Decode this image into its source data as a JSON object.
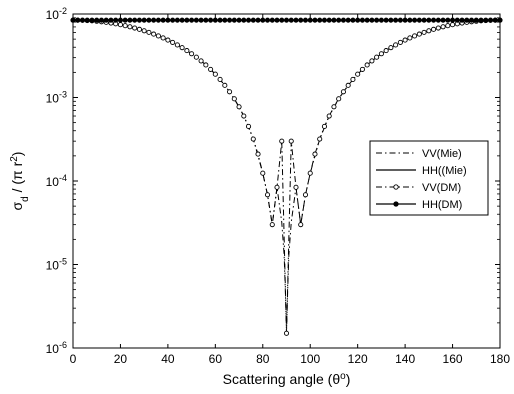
{
  "chart_data": {
    "type": "line",
    "xlabel": "Scattering angle (θ",
    "xlabel_sup": "o",
    "xlabel_end": ")",
    "ylabel_main": "σ",
    "ylabel_sub": "d",
    "ylabel_mid": " / (π r",
    "ylabel_sup": "2",
    "ylabel_end": ")",
    "xlim": [
      0,
      180
    ],
    "ylim": [
      1e-06,
      0.01
    ],
    "yscale": "log",
    "grid": false,
    "legend_position": "right",
    "x_ticks": [
      "0",
      "20",
      "40",
      "60",
      "80",
      "100",
      "120",
      "140",
      "160",
      "180"
    ],
    "y_ticks": [
      {
        "base": "10",
        "exp": "-6"
      },
      {
        "base": "10",
        "exp": "-5"
      },
      {
        "base": "10",
        "exp": "-4"
      },
      {
        "base": "10",
        "exp": "-3"
      },
      {
        "base": "10",
        "exp": "-2"
      }
    ],
    "legend": [
      "VV(Mie)",
      "HH((Mie)",
      "VV(DM)",
      "HH(DM)"
    ],
    "series": [
      {
        "name": "VV(Mie)",
        "style": "dash-dot",
        "marker": "none",
        "x": [
          0,
          4,
          8,
          12,
          16,
          20,
          24,
          28,
          32,
          36,
          40,
          44,
          48,
          52,
          56,
          60,
          64,
          68,
          72,
          76,
          80,
          82,
          84,
          86,
          88,
          89,
          89.5,
          90,
          90.5,
          91,
          92,
          94,
          96,
          98,
          100,
          104,
          108,
          112,
          116,
          120,
          124,
          128,
          132,
          136,
          140,
          144,
          148,
          152,
          156,
          160,
          164,
          168,
          172,
          176,
          180
        ],
        "y": [
          0.00844,
          0.008398,
          0.008276,
          0.008072,
          0.007793,
          0.007442,
          0.007024,
          0.006548,
          0.006024,
          0.00546,
          0.004868,
          0.00426,
          0.003646,
          0.003039,
          0.002452,
          0.001901,
          0.001398,
          0.000964,
          0.0006,
          0.000318,
          0.000124,
          6.84e-05,
          3e-05,
          8.4e-05,
          3.2e-05,
          1.3e-05,
          5e-06,
          1.5e-06,
          5e-06,
          1.3e-05,
          3.2e-05,
          8.4e-05,
          3e-05,
          6.84e-05,
          0.000124,
          0.000318,
          0.0006,
          0.000964,
          0.001398,
          0.001901,
          0.002452,
          0.003039,
          0.003646,
          0.00426,
          0.004868,
          0.00546,
          0.006024,
          0.006548,
          0.007024,
          0.007442,
          0.007793,
          0.008072,
          0.008276,
          0.008398,
          0.00844
        ]
      },
      {
        "name": "HH((Mie)",
        "style": "solid",
        "marker": "none",
        "x": [
          0,
          180
        ],
        "y": [
          0.00844,
          0.00844
        ]
      },
      {
        "name": "VV(DM)",
        "style": "dash-dot",
        "marker": "open-circle",
        "x": [
          0,
          2,
          4,
          6,
          8,
          10,
          12,
          14,
          16,
          18,
          20,
          22,
          24,
          26,
          28,
          30,
          32,
          34,
          36,
          38,
          40,
          42,
          44,
          46,
          48,
          50,
          52,
          54,
          56,
          58,
          60,
          62,
          64,
          66,
          68,
          70,
          72,
          74,
          76,
          78,
          80,
          82,
          84,
          86,
          88,
          90,
          92,
          94,
          96,
          98,
          100,
          102,
          104,
          106,
          108,
          110,
          112,
          114,
          116,
          118,
          120,
          122,
          124,
          126,
          128,
          130,
          132,
          134,
          136,
          138,
          140,
          142,
          144,
          146,
          148,
          150,
          152,
          154,
          156,
          158,
          160,
          162,
          164,
          166,
          168,
          170,
          172,
          174,
          176,
          178,
          180
        ],
        "y": [
          0.00844,
          0.00843,
          0.008398,
          0.008346,
          0.008276,
          0.008185,
          0.008072,
          0.007942,
          0.007793,
          0.007626,
          0.007442,
          0.007241,
          0.007024,
          0.006794,
          0.006548,
          0.006291,
          0.006024,
          0.005746,
          0.00546,
          0.005167,
          0.004868,
          0.004566,
          0.00426,
          0.003953,
          0.003646,
          0.003341,
          0.003039,
          0.002741,
          0.002452,
          0.00217,
          0.001901,
          0.001645,
          0.001398,
          0.001171,
          0.000964,
          0.000774,
          0.0006,
          0.00045,
          0.000318,
          0.00021,
          0.000124,
          6.84e-05,
          3e-05,
          8.4e-05,
          0.0003,
          1.5e-06,
          0.0003,
          8.4e-05,
          3e-05,
          6.84e-05,
          0.000124,
          0.00021,
          0.000318,
          0.00045,
          0.0006,
          0.000774,
          0.000964,
          0.001171,
          0.001398,
          0.001645,
          0.001901,
          0.00217,
          0.002452,
          0.002741,
          0.003039,
          0.003341,
          0.003646,
          0.003953,
          0.00426,
          0.004566,
          0.004868,
          0.005167,
          0.00546,
          0.005746,
          0.006024,
          0.006291,
          0.006548,
          0.006794,
          0.007024,
          0.007241,
          0.007442,
          0.007626,
          0.007793,
          0.007942,
          0.008072,
          0.008185,
          0.008276,
          0.008346,
          0.008398,
          0.00843,
          0.00844
        ]
      },
      {
        "name": "HH(DM)",
        "style": "solid",
        "marker": "filled-circle",
        "x": [
          0,
          2,
          4,
          6,
          8,
          10,
          12,
          14,
          16,
          18,
          20,
          22,
          24,
          26,
          28,
          30,
          32,
          34,
          36,
          38,
          40,
          42,
          44,
          46,
          48,
          50,
          52,
          54,
          56,
          58,
          60,
          62,
          64,
          66,
          68,
          70,
          72,
          74,
          76,
          78,
          80,
          82,
          84,
          86,
          88,
          90,
          92,
          94,
          96,
          98,
          100,
          102,
          104,
          106,
          108,
          110,
          112,
          114,
          116,
          118,
          120,
          122,
          124,
          126,
          128,
          130,
          132,
          134,
          136,
          138,
          140,
          142,
          144,
          146,
          148,
          150,
          152,
          154,
          156,
          158,
          160,
          162,
          164,
          166,
          168,
          170,
          172,
          174,
          176,
          178,
          180
        ],
        "y": [
          0.00844,
          0.00844,
          0.00844,
          0.00844,
          0.00844,
          0.00844,
          0.00844,
          0.00844,
          0.00844,
          0.00844,
          0.00844,
          0.00844,
          0.00844,
          0.00844,
          0.00844,
          0.00844,
          0.00844,
          0.00844,
          0.00844,
          0.00844,
          0.00844,
          0.00844,
          0.00844,
          0.00844,
          0.00844,
          0.00844,
          0.00844,
          0.00844,
          0.00844,
          0.00844,
          0.00844,
          0.00844,
          0.00844,
          0.00844,
          0.00844,
          0.00844,
          0.00844,
          0.00844,
          0.00844,
          0.00844,
          0.00844,
          0.00844,
          0.00844,
          0.00844,
          0.00844,
          0.00844,
          0.00844,
          0.00844,
          0.00844,
          0.00844,
          0.00844,
          0.00844,
          0.00844,
          0.00844,
          0.00844,
          0.00844,
          0.00844,
          0.00844,
          0.00844,
          0.00844,
          0.00844,
          0.00844,
          0.00844,
          0.00844,
          0.00844,
          0.00844,
          0.00844,
          0.00844,
          0.00844,
          0.00844,
          0.00844,
          0.00844,
          0.00844,
          0.00844,
          0.00844,
          0.00844,
          0.00844,
          0.00844,
          0.00844,
          0.00844,
          0.00844,
          0.00844,
          0.00844,
          0.00844,
          0.00844,
          0.00844,
          0.00844,
          0.00844,
          0.00844,
          0.00844,
          0.00844
        ]
      }
    ]
  }
}
